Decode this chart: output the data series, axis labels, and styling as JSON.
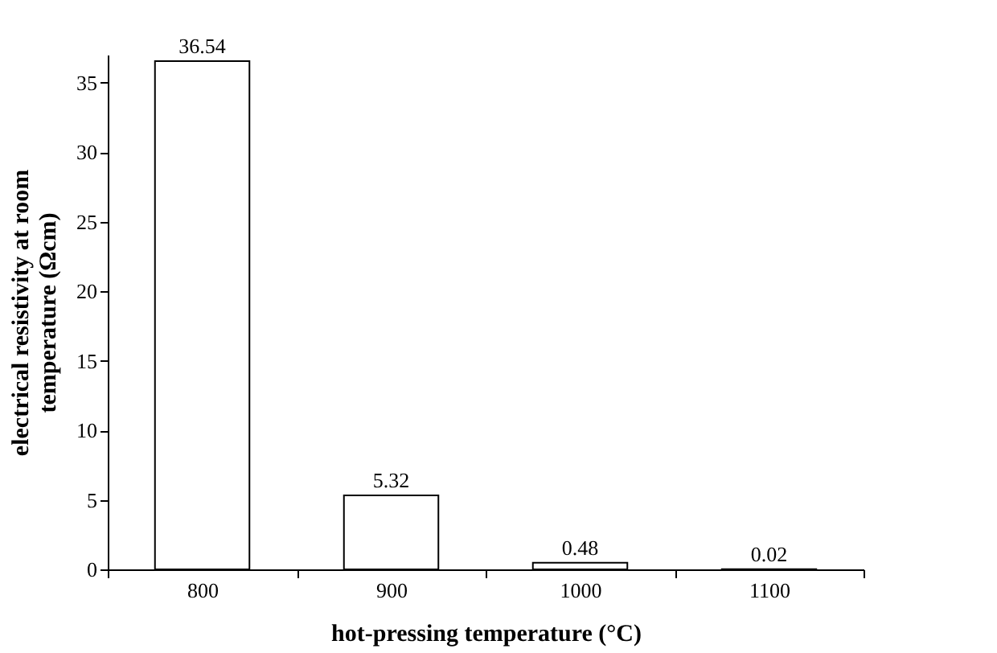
{
  "chart_data": {
    "type": "bar",
    "xlabel": "hot-pressing temperature (°C)",
    "ylabel": "electrical resistivity at room temperature (Ωcm)",
    "categories": [
      "800",
      "900",
      "1000",
      "1100"
    ],
    "values": [
      36.54,
      5.32,
      0.48,
      0.02
    ],
    "color": "#ffffff",
    "ylim": [
      0,
      37
    ],
    "yticks": [
      0,
      5,
      10,
      15,
      20,
      25,
      30,
      35
    ],
    "data_labels": true,
    "grid": false
  }
}
